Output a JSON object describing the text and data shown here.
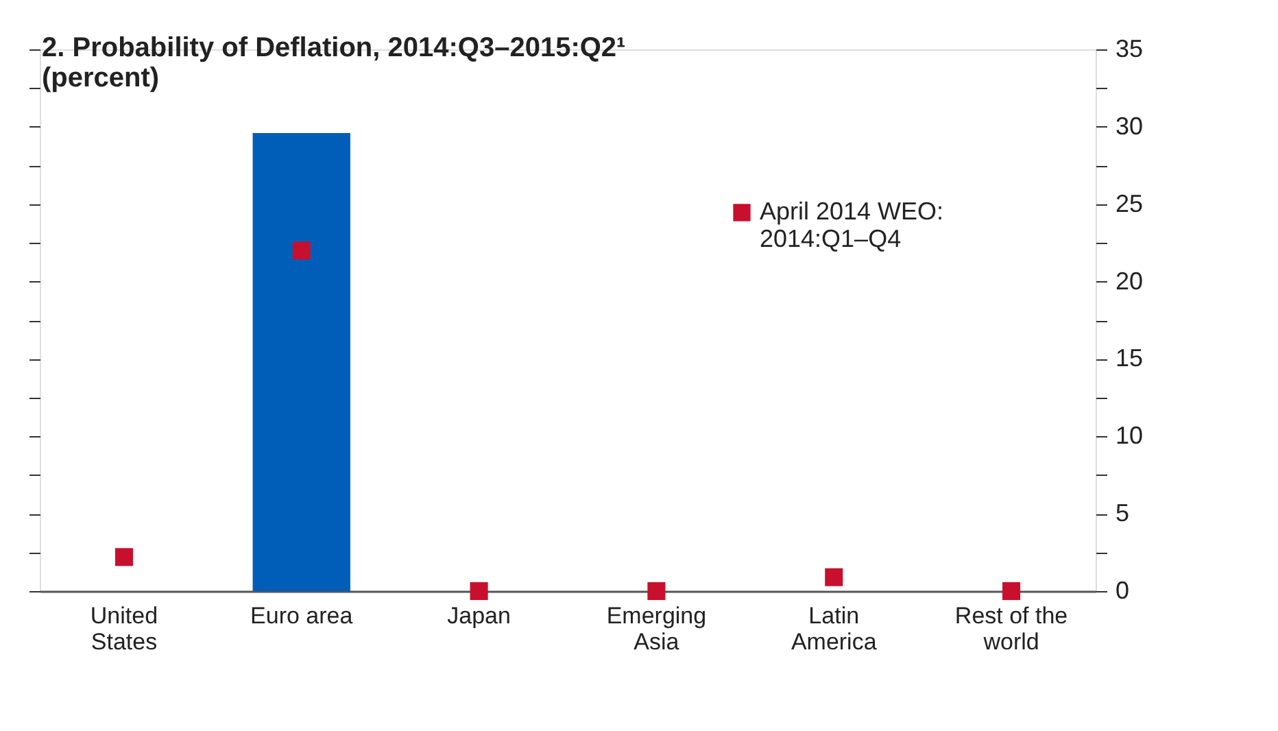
{
  "chart_data": {
    "type": "bar",
    "title": "2. Probability of Deflation, 2014:Q3–2015:Q2¹",
    "subtitle": "(percent)",
    "categories": [
      "United States",
      "Euro area",
      "Japan",
      "Emerging Asia",
      "Latin America",
      "Rest of the world"
    ],
    "series": [
      {
        "color": "#005eb8",
        "values": [
          0,
          29.6,
          0,
          0,
          0,
          0
        ]
      },
      {
        "type": "scatter",
        "name": "April 2014 WEO: 2014:Q1–Q4",
        "color": "#c8102e",
        "values": [
          2.2,
          22.0,
          0,
          0,
          0.9,
          0
        ]
      }
    ],
    "ylim": [
      0,
      35
    ],
    "yticks": [
      0,
      {
        "value": 2.5,
        "label": null
      },
      5,
      {
        "value": 7.5,
        "label": null
      },
      10,
      {
        "value": 12.5,
        "label": null
      },
      15,
      {
        "value": 17.5,
        "label": null
      },
      20,
      {
        "value": 22.5,
        "label": null
      },
      25,
      {
        "value": 27.5,
        "label": null
      },
      30,
      {
        "value": 32.5,
        "label": null
      },
      35
    ],
    "grid": false,
    "legend": "top right",
    "marker": "square"
  }
}
